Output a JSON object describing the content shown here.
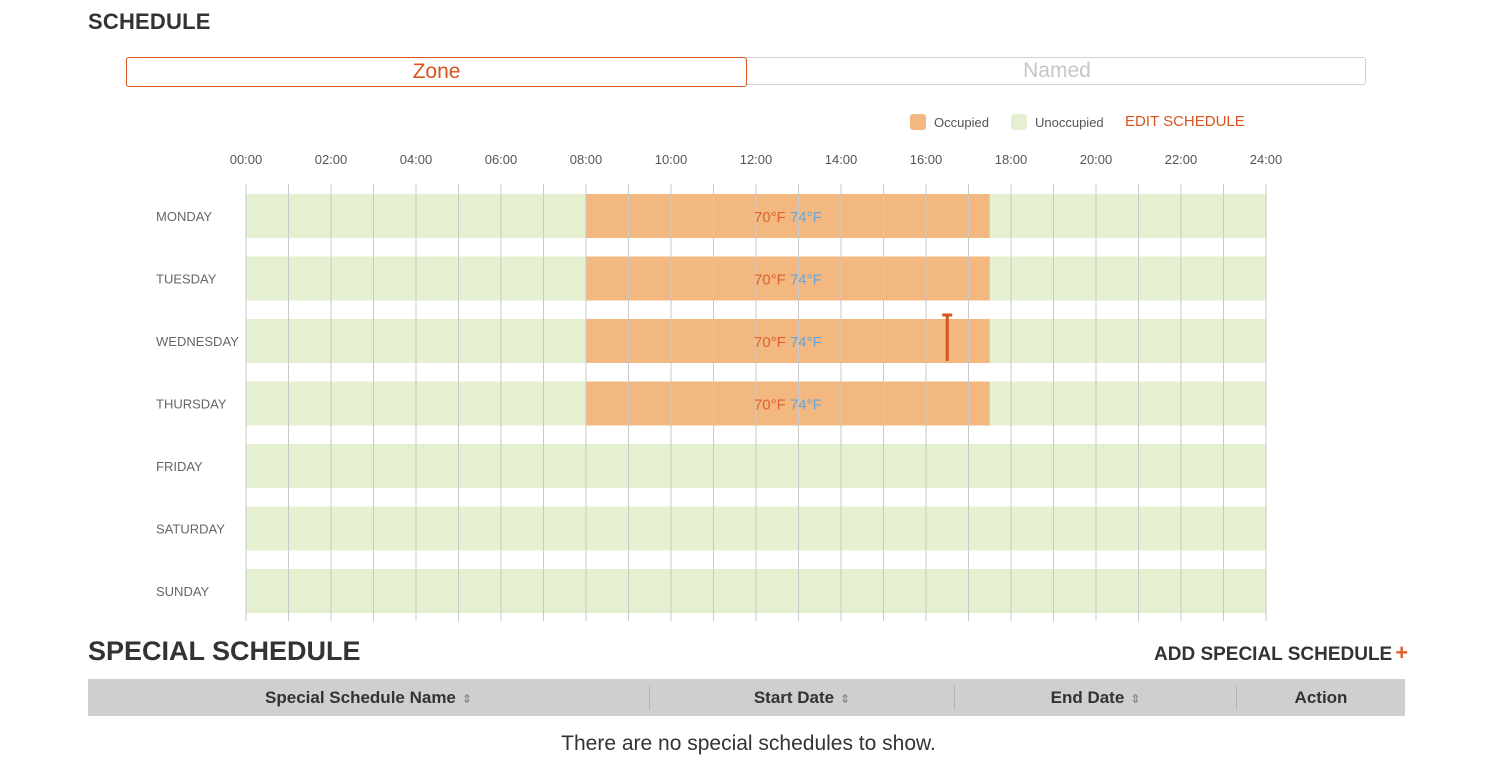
{
  "schedule": {
    "title": "SCHEDULE",
    "tabs": {
      "zone": "Zone",
      "named": "Named"
    },
    "legend": {
      "occupied": "Occupied",
      "unoccupied": "Unoccupied",
      "occupied_color": "#f2b880",
      "unoccupied_color": "#e5f0d0"
    },
    "edit_label": "EDIT SCHEDULE",
    "accent_color": "#d9531e"
  },
  "chart_data": {
    "type": "timeline",
    "x_ticks": [
      "00:00",
      "02:00",
      "04:00",
      "06:00",
      "08:00",
      "10:00",
      "12:00",
      "14:00",
      "16:00",
      "18:00",
      "20:00",
      "22:00",
      "24:00"
    ],
    "x_range_hours": [
      0,
      24
    ],
    "days": [
      {
        "label": "MONDAY",
        "occupied": [
          8,
          17.5
        ],
        "heat": "70°F",
        "cool": "74°F"
      },
      {
        "label": "TUESDAY",
        "occupied": [
          8,
          17.5
        ],
        "heat": "70°F",
        "cool": "74°F"
      },
      {
        "label": "WEDNESDAY",
        "occupied": [
          8,
          17.5
        ],
        "heat": "70°F",
        "cool": "74°F"
      },
      {
        "label": "THURSDAY",
        "occupied": [
          8,
          17.5
        ],
        "heat": "70°F",
        "cool": "74°F"
      },
      {
        "label": "FRIDAY",
        "occupied": null
      },
      {
        "label": "SATURDAY",
        "occupied": null
      },
      {
        "label": "SUNDAY",
        "occupied": null
      }
    ],
    "current_time_marker": {
      "day": "WEDNESDAY",
      "hour": 16.5
    }
  },
  "special_schedule": {
    "title": "SPECIAL SCHEDULE",
    "add_label": "ADD SPECIAL SCHEDULE",
    "add_icon": "+",
    "columns": [
      "Special Schedule Name",
      "Start Date",
      "End Date",
      "Action"
    ],
    "sort_icon": "⇕",
    "empty_message": "There are no special schedules to show."
  }
}
